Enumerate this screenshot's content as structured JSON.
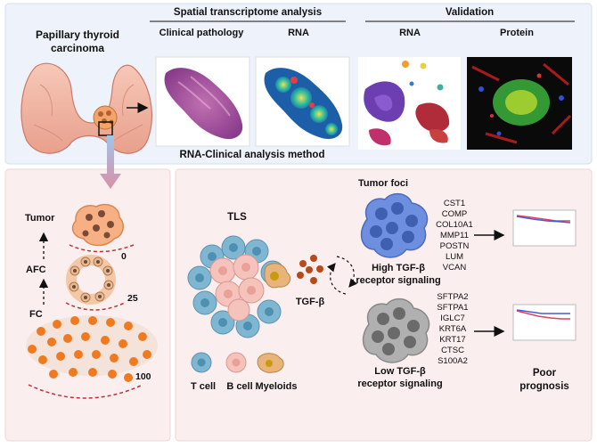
{
  "top": {
    "ptc_title_line1": "Papillary thyroid",
    "ptc_title_line2": "carcinoma",
    "spatial_header": "Spatial transcriptome analysis",
    "clinical_pathology_label": "Clinical pathology",
    "rna_spatial_label": "RNA",
    "method_caption": "RNA-Clinical analysis method",
    "validation_header": "Validation",
    "rna_validation_label": "RNA",
    "protein_label": "Protein"
  },
  "left": {
    "tumor_label": "Tumor",
    "afc_label": "AFC",
    "fc_label": "FC",
    "stage_values": [
      "0",
      "25",
      "100"
    ]
  },
  "tls": {
    "tls_label": "TLS",
    "tgf_label": "TGF-β",
    "legend": [
      "T cell",
      "B cell",
      "Myeloids"
    ]
  },
  "foci": {
    "tumor_foci_label": "Tumor foci",
    "high_genes": [
      "CST1",
      "COMP",
      "COL10A1",
      "MMP11",
      "POSTN",
      "LUM",
      "VCAN"
    ],
    "high_label_line1": "High TGF-β",
    "high_label_line2": "receptor signaling",
    "low_genes": [
      "SFTPA2",
      "SFTPA1",
      "IGLC7",
      "KRT6A",
      "KRT17",
      "CTSC",
      "S100A2"
    ],
    "low_label_line1": "Low TGF-β",
    "low_label_line2": "receptor signaling",
    "outcome_line1": "Poor",
    "outcome_line2": "prognosis"
  },
  "colors": {
    "top_bg": "#eef3fb",
    "bottom_bg": "#fbeeee",
    "tumor_orange": "#f08030",
    "t_cell": "#7fb6d2",
    "b_cell": "#f6c2bc",
    "myeloid": "#e8b47a",
    "high_blue": "#6e8ee0",
    "low_gray": "#9a9a9a",
    "curve_blue": "#4a5bd0",
    "curve_red": "#e04060"
  }
}
